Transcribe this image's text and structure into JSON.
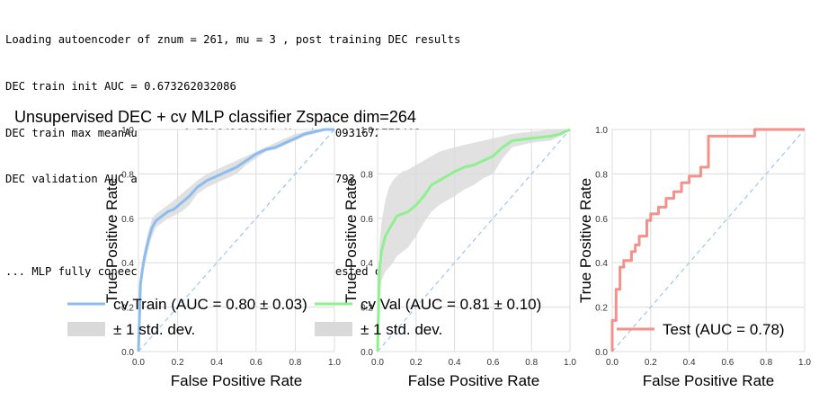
{
  "log_lines": [
    "Loading autoencoder of znum = 261, mu = 3 , post training DEC results",
    "DEC train init AUC = 0.673262032086",
    "DEC train max meanAuc_cv = 0.732642602496 $\\pm$ 0.0931672775493",
    "DEC validation AUC at max meanAuc_cv = 0.775172413793",
    "",
    "... MLP fully coneected layer trained on Z_train tested on Z_test"
  ],
  "figure_title": "Unsupervised DEC + cv MLP classifier Zspace dim=264",
  "chart_data": [
    {
      "type": "line",
      "panel": "train",
      "xlabel": "False Positive Rate",
      "ylabel": "True Positive Rate",
      "xlim": [
        0,
        1
      ],
      "ylim": [
        0,
        1
      ],
      "xticks": [
        "0.0",
        "0.2",
        "0.4",
        "0.6",
        "0.8",
        "1.0"
      ],
      "yticks": [
        "0.0",
        "0.2",
        "0.4",
        "0.6",
        "0.8",
        "1.0"
      ],
      "grid": true,
      "legend_position": "lower-left",
      "legend": [
        "cv Train (AUC = 0.80 ± 0.03)",
        "± 1 std. dev."
      ],
      "colors": {
        "line": "#8cbdf0",
        "band": "#d9d9d9",
        "diagonal": "#9ec6ee"
      },
      "series": [
        {
          "name": "cv Train (AUC = 0.80 ± 0.03)",
          "x": [
            0.0,
            0.01,
            0.02,
            0.03,
            0.05,
            0.07,
            0.09,
            0.12,
            0.15,
            0.18,
            0.22,
            0.26,
            0.3,
            0.35,
            0.4,
            0.45,
            0.5,
            0.55,
            0.6,
            0.65,
            0.7,
            0.75,
            0.8,
            0.85,
            0.9,
            0.95,
            1.0
          ],
          "y": [
            0.0,
            0.3,
            0.37,
            0.42,
            0.5,
            0.56,
            0.59,
            0.61,
            0.63,
            0.64,
            0.67,
            0.7,
            0.74,
            0.77,
            0.79,
            0.81,
            0.83,
            0.86,
            0.89,
            0.91,
            0.92,
            0.94,
            0.96,
            0.98,
            0.99,
            1.0,
            1.0
          ]
        }
      ],
      "band_upper": [
        0.0,
        0.34,
        0.41,
        0.46,
        0.54,
        0.6,
        0.62,
        0.64,
        0.66,
        0.68,
        0.71,
        0.74,
        0.77,
        0.8,
        0.82,
        0.84,
        0.86,
        0.88,
        0.9,
        0.92,
        0.94,
        0.96,
        0.98,
        0.99,
        1.0,
        1.0,
        1.0
      ],
      "band_lower": [
        0.0,
        0.26,
        0.33,
        0.38,
        0.46,
        0.52,
        0.56,
        0.58,
        0.6,
        0.61,
        0.63,
        0.66,
        0.71,
        0.74,
        0.76,
        0.78,
        0.8,
        0.84,
        0.87,
        0.9,
        0.91,
        0.93,
        0.95,
        0.97,
        0.98,
        1.0,
        1.0
      ],
      "diagonal": {
        "x": [
          0,
          1
        ],
        "y": [
          0,
          1
        ]
      }
    },
    {
      "type": "line",
      "panel": "validation",
      "xlabel": "False Positive Rate",
      "ylabel": "True Positive Rate",
      "xlim": [
        0,
        1
      ],
      "ylim": [
        0,
        1
      ],
      "xticks": [
        "0.0",
        "0.2",
        "0.4",
        "0.6",
        "0.8",
        "1.0"
      ],
      "yticks": [
        "0.0",
        "0.2",
        "0.4",
        "0.6",
        "0.8",
        "1.0"
      ],
      "grid": true,
      "legend_position": "lower-left",
      "legend": [
        "cv Val (AUC = 0.81 ± 0.10)",
        "± 1 std. dev."
      ],
      "colors": {
        "line": "#8ef08e",
        "band": "#d9d9d9",
        "diagonal": "#9ec6ee"
      },
      "series": [
        {
          "name": "cv Val (AUC = 0.81 ± 0.10)",
          "x": [
            0.0,
            0.01,
            0.02,
            0.04,
            0.06,
            0.08,
            0.1,
            0.13,
            0.16,
            0.2,
            0.24,
            0.28,
            0.32,
            0.36,
            0.4,
            0.45,
            0.5,
            0.55,
            0.6,
            0.65,
            0.7,
            0.8,
            0.9,
            0.95,
            1.0
          ],
          "y": [
            0.0,
            0.37,
            0.45,
            0.52,
            0.55,
            0.58,
            0.61,
            0.62,
            0.63,
            0.66,
            0.7,
            0.75,
            0.77,
            0.79,
            0.81,
            0.83,
            0.84,
            0.86,
            0.88,
            0.92,
            0.95,
            0.96,
            0.97,
            0.98,
            1.0
          ]
        }
      ],
      "band_upper": [
        0.0,
        0.48,
        0.58,
        0.68,
        0.74,
        0.77,
        0.79,
        0.81,
        0.82,
        0.84,
        0.86,
        0.88,
        0.9,
        0.91,
        0.92,
        0.93,
        0.94,
        0.95,
        0.96,
        0.97,
        0.98,
        0.99,
        1.0,
        1.0,
        1.0
      ],
      "band_lower": [
        0.0,
        0.27,
        0.32,
        0.36,
        0.38,
        0.4,
        0.43,
        0.45,
        0.47,
        0.52,
        0.58,
        0.63,
        0.66,
        0.68,
        0.7,
        0.73,
        0.75,
        0.78,
        0.8,
        0.87,
        0.92,
        0.94,
        0.95,
        0.97,
        1.0
      ],
      "diagonal": {
        "x": [
          0,
          1
        ],
        "y": [
          0,
          1
        ]
      }
    },
    {
      "type": "line",
      "panel": "test",
      "xlabel": "False Positive Rate",
      "ylabel": "True Positive Rate",
      "xlim": [
        0,
        1
      ],
      "ylim": [
        0,
        1
      ],
      "xticks": [
        "0.0",
        "0.2",
        "0.4",
        "0.6",
        "0.8",
        "1.0"
      ],
      "yticks": [
        "0.0",
        "0.2",
        "0.4",
        "0.6",
        "0.8",
        "1.0"
      ],
      "grid": true,
      "legend_position": "lower-right",
      "legend": [
        "Test (AUC = 0.78)"
      ],
      "colors": {
        "line": "#f4918a",
        "diagonal": "#9ec6ee"
      },
      "series": [
        {
          "name": "Test (AUC = 0.78)",
          "x": [
            0.0,
            0.0,
            0.02,
            0.02,
            0.04,
            0.04,
            0.06,
            0.06,
            0.1,
            0.1,
            0.12,
            0.12,
            0.14,
            0.14,
            0.18,
            0.18,
            0.2,
            0.2,
            0.24,
            0.24,
            0.28,
            0.28,
            0.32,
            0.32,
            0.36,
            0.36,
            0.4,
            0.4,
            0.46,
            0.46,
            0.5,
            0.5,
            0.54,
            0.54,
            0.74,
            0.74,
            1.0
          ],
          "y": [
            0.0,
            0.14,
            0.14,
            0.28,
            0.28,
            0.38,
            0.38,
            0.41,
            0.41,
            0.45,
            0.45,
            0.48,
            0.48,
            0.52,
            0.52,
            0.59,
            0.59,
            0.62,
            0.62,
            0.65,
            0.65,
            0.69,
            0.69,
            0.72,
            0.72,
            0.76,
            0.76,
            0.79,
            0.79,
            0.83,
            0.83,
            0.97,
            0.97,
            0.97,
            0.97,
            1.0,
            1.0
          ]
        }
      ],
      "diagonal": {
        "x": [
          0,
          1
        ],
        "y": [
          0,
          1
        ]
      }
    }
  ]
}
